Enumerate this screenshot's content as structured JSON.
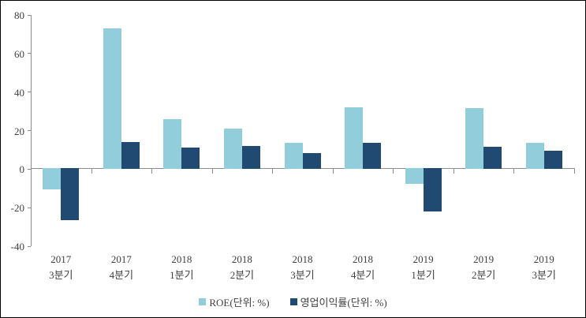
{
  "chart_data": {
    "type": "bar",
    "title": "",
    "xlabel": "",
    "ylabel": "",
    "ylim": [
      -40,
      80
    ],
    "yticks": [
      80,
      60,
      40,
      20,
      0,
      -20,
      -40
    ],
    "grid": false,
    "legend_position": "bottom",
    "categories": [
      {
        "line1": "2017",
        "line2": "3분기"
      },
      {
        "line1": "2017",
        "line2": "4분기"
      },
      {
        "line1": "2018",
        "line2": "1분기"
      },
      {
        "line1": "2018",
        "line2": "2분기"
      },
      {
        "line1": "2018",
        "line2": "3분기"
      },
      {
        "line1": "2018",
        "line2": "4분기"
      },
      {
        "line1": "2019",
        "line2": "1분기"
      },
      {
        "line1": "2019",
        "line2": "2분기"
      },
      {
        "line1": "2019",
        "line2": "3분기"
      }
    ],
    "series": [
      {
        "name": "ROE(단위: %)",
        "color": "#92CDDC",
        "values": [
          -11,
          73,
          26,
          21,
          13.5,
          32,
          -8,
          31.5,
          13.5
        ]
      },
      {
        "name": "영업이익률(단위: %)",
        "color": "#214A72",
        "values": [
          -27,
          14,
          11,
          12,
          8.5,
          13.5,
          -22.5,
          11.5,
          9.5
        ]
      }
    ],
    "axis_color": "#8C8C8C",
    "text_color": "#3F3F3F"
  }
}
